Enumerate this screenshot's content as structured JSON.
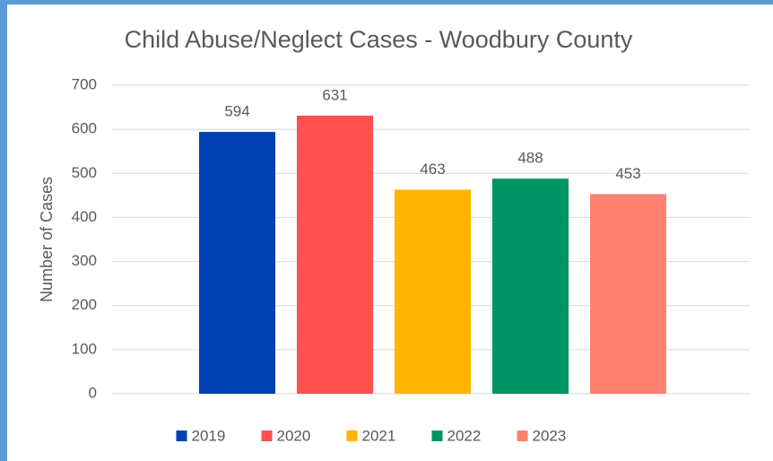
{
  "chart_data": {
    "type": "bar",
    "title": "Child Abuse/Neglect Cases - Woodbury County",
    "y_label": "Number of Cases",
    "categories": [
      null
    ],
    "series": [
      {
        "name": "2019",
        "color": "#0041b3",
        "values": [
          594
        ]
      },
      {
        "name": "2020",
        "color": "#ff5050",
        "values": [
          631
        ]
      },
      {
        "name": "2021",
        "color": "#ffb400",
        "values": [
          463
        ]
      },
      {
        "name": "2022",
        "color": "#009464",
        "values": [
          488
        ]
      },
      {
        "name": "2023",
        "color": "#ff8070",
        "values": [
          453
        ]
      }
    ],
    "ylim": [
      0,
      700
    ],
    "yticks": [
      0,
      100,
      200,
      300,
      400,
      500,
      600,
      700
    ],
    "grid": true,
    "legend": "bottom",
    "data_labels": true
  }
}
